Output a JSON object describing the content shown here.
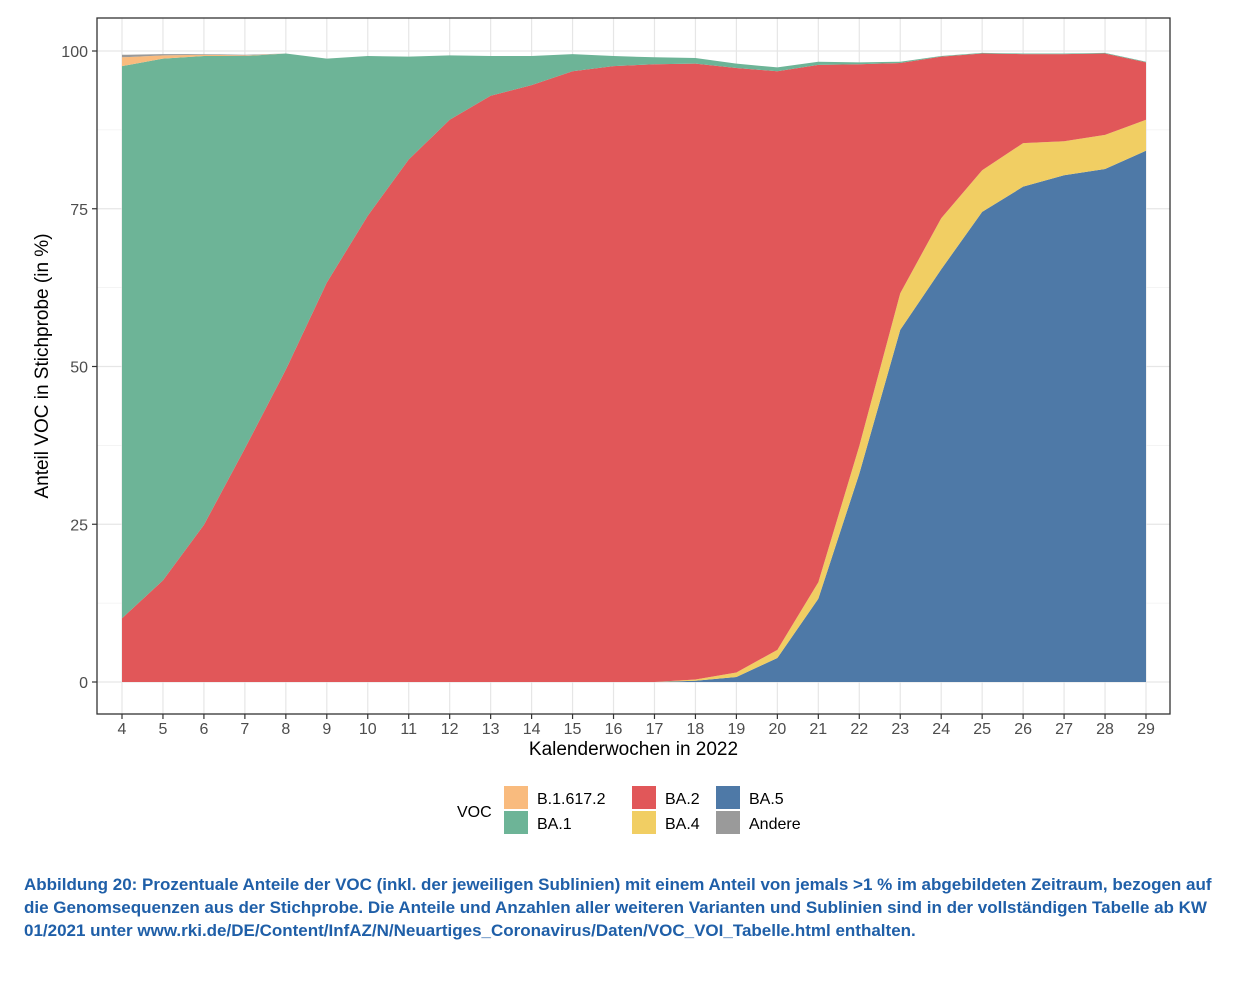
{
  "chart_data": {
    "type": "area",
    "stacked": true,
    "xlabel": "Kalenderwochen in 2022",
    "ylabel": "Anteil VOC in Stichprobe (in %)",
    "x": [
      4,
      5,
      6,
      7,
      8,
      9,
      10,
      11,
      12,
      13,
      14,
      15,
      16,
      17,
      18,
      19,
      20,
      21,
      22,
      23,
      24,
      25,
      26,
      27,
      28,
      29
    ],
    "xlim": [
      4,
      29
    ],
    "ylim": [
      0,
      100
    ],
    "yticks": [
      0,
      25,
      50,
      75,
      100
    ],
    "grid": true,
    "legend": {
      "title": "VOC",
      "placement": "bottom"
    },
    "series": [
      {
        "name": "BA.5",
        "color": "#4e79a7",
        "values": [
          0,
          0,
          0,
          0,
          0,
          0,
          0,
          0,
          0,
          0,
          0,
          0,
          0,
          0,
          0.2,
          0.8,
          3.8,
          13.2,
          33.0,
          55.8,
          65.4,
          74.5,
          78.5,
          80.3,
          81.3,
          84.2
        ]
      },
      {
        "name": "BA.4",
        "color": "#f1ce63",
        "values": [
          0,
          0,
          0,
          0,
          0,
          0,
          0,
          0,
          0,
          0,
          0,
          0,
          0,
          0,
          0.2,
          0.7,
          1.3,
          2.6,
          4.4,
          5.8,
          8.1,
          6.6,
          6.9,
          5.4,
          5.4,
          4.9
        ]
      },
      {
        "name": "BA.2",
        "color": "#e15759",
        "values": [
          10.1,
          16.1,
          24.9,
          37.0,
          49.5,
          63.3,
          73.9,
          82.8,
          89.1,
          92.9,
          94.6,
          96.8,
          97.6,
          97.9,
          97.6,
          95.8,
          91.7,
          82.0,
          60.5,
          36.5,
          25.6,
          18.5,
          14.1,
          13.8,
          12.9,
          9.1
        ]
      },
      {
        "name": "BA.1",
        "color": "#6db497",
        "values": [
          87.5,
          82.7,
          74.3,
          62.2,
          50.1,
          35.5,
          25.3,
          16.3,
          10.2,
          6.3,
          4.6,
          2.7,
          1.6,
          1.1,
          0.9,
          0.7,
          0.6,
          0.5,
          0.3,
          0.2,
          0.1,
          0.1,
          0.1,
          0.1,
          0.1,
          0.1
        ]
      },
      {
        "name": "B.1.617.2",
        "color": "#f9bb7e",
        "values": [
          1.4,
          0.5,
          0.2,
          0.1,
          0,
          0,
          0,
          0,
          0,
          0,
          0,
          0,
          0,
          0,
          0,
          0,
          0,
          0,
          0,
          0,
          0,
          0,
          0,
          0,
          0,
          0
        ]
      },
      {
        "name": "Andere",
        "color": "#9a9a9a",
        "values": [
          0.4,
          0.2,
          0.1,
          0.1,
          0,
          0,
          0,
          0,
          0,
          0,
          0,
          0,
          0,
          0,
          0,
          0,
          0,
          0,
          0,
          0,
          0,
          0,
          0,
          0,
          0,
          0
        ]
      }
    ],
    "legend_order": [
      "B.1.617.2",
      "BA.1",
      "BA.2",
      "BA.4",
      "BA.5",
      "Andere"
    ]
  },
  "caption": "Abbildung 20: Prozentuale Anteile der VOC (inkl. der jeweiligen Sublinien) mit einem Anteil von jemals >1 % im abgebildeten Zeitraum, bezogen auf die Genomsequenzen aus der Stichprobe. Die Anteile und Anzahlen aller weiteren Varianten und Sublinien sind in der vollständigen Tabelle ab KW 01/2021 unter www.rki.de/DE/Content/InfAZ/N/Neuartiges_Coronavirus/Daten/VOC_VOI_Tabelle.html enthalten."
}
